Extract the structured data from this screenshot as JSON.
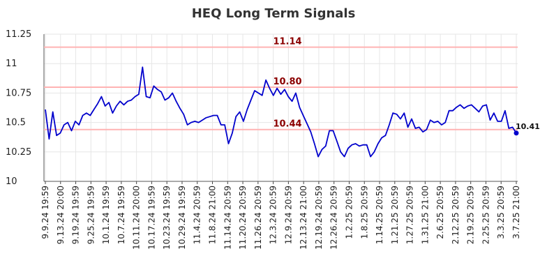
{
  "chart_data": {
    "type": "line",
    "title": "HEQ Long Term Signals",
    "xlabel": "",
    "ylabel": "",
    "ylim": [
      10,
      11.25
    ],
    "yticks": [
      10,
      10.25,
      10.5,
      10.75,
      11,
      11.25
    ],
    "ytick_labels": [
      "10",
      "10.25",
      "10.5",
      "10.75",
      "11",
      "11.25"
    ],
    "xtick_labels": [
      "9.9.24 19:59",
      "9.13.24 20:00",
      "9.19.24 19:59",
      "9.25.24 19:59",
      "10.1.24 19:59",
      "10.7.24 19:59",
      "10.11.24 20:00",
      "10.17.24 19:59",
      "10.23.24 19:59",
      "10.29.24 19:59",
      "11.4.24 20:59",
      "11.8.24 21:00",
      "11.14.24 20:59",
      "11.20.24 20:59",
      "11.26.24 20:59",
      "12.3.24 20:59",
      "12.9.24 20:59",
      "12.13.24 21:00",
      "12.19.24 20:59",
      "12.26.24 20:59",
      "1.2.25 20:59",
      "1.8.25 20:59",
      "1.14.25 20:59",
      "1.21.25 20:59",
      "1.27.25 20:59",
      "1.31.25 21:00",
      "2.6.25 20:59",
      "2.12.25 20:59",
      "2.19.25 20:59",
      "2.25.25 20:59",
      "3.3.25 20:59",
      "3.7.25 21:00"
    ],
    "grid": true,
    "line_color": "#0000cc",
    "hline_color": "#ffb3b3",
    "hlabel_color": "#8b0000",
    "horizontal_lines": [
      {
        "value": 11.14,
        "label": "11.14"
      },
      {
        "value": 10.8,
        "label": "10.80"
      },
      {
        "value": 10.44,
        "label": "10.44"
      }
    ],
    "last_value_label": "10.41",
    "series": [
      {
        "values": [
          10.61,
          10.36,
          10.59,
          10.39,
          10.41,
          10.48,
          10.5,
          10.43,
          10.51,
          10.48,
          10.56,
          10.58,
          10.56,
          10.61,
          10.66,
          10.72,
          10.64,
          10.67,
          10.58,
          10.64,
          10.68,
          10.65,
          10.68,
          10.69,
          10.72,
          10.74,
          10.97,
          10.72,
          10.71,
          10.81,
          10.78,
          10.76,
          10.69,
          10.71,
          10.75,
          10.68,
          10.62,
          10.57,
          10.48,
          10.5,
          10.51,
          10.5,
          10.52,
          10.54,
          10.55,
          10.56,
          10.56,
          10.48,
          10.48,
          10.32,
          10.41,
          10.55,
          10.59,
          10.51,
          10.61,
          10.69,
          10.77,
          10.75,
          10.73,
          10.86,
          10.79,
          10.73,
          10.79,
          10.74,
          10.78,
          10.72,
          10.68,
          10.75,
          10.63,
          10.56,
          10.49,
          10.42,
          10.32,
          10.21,
          10.27,
          10.3,
          10.43,
          10.43,
          10.34,
          10.25,
          10.21,
          10.28,
          10.31,
          10.32,
          10.3,
          10.31,
          10.31,
          10.21,
          10.25,
          10.32,
          10.37,
          10.39,
          10.48,
          10.58,
          10.57,
          10.53,
          10.58,
          10.46,
          10.53,
          10.45,
          10.46,
          10.42,
          10.44,
          10.52,
          10.5,
          10.51,
          10.48,
          10.5,
          10.6,
          10.6,
          10.63,
          10.65,
          10.62,
          10.64,
          10.65,
          10.62,
          10.59,
          10.64,
          10.65,
          10.52,
          10.58,
          10.51,
          10.51,
          10.6,
          10.45,
          10.46,
          10.41
        ]
      }
    ]
  }
}
